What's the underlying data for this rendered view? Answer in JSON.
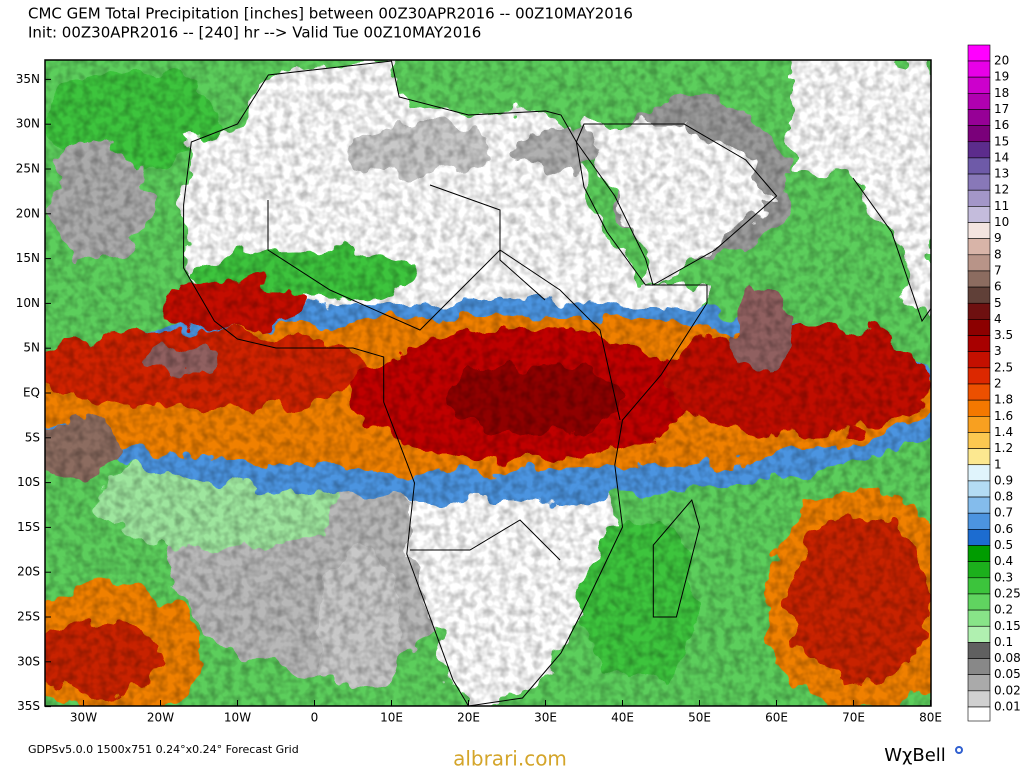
{
  "header": {
    "title": "CMC GEM Total Precipitation [inches] between 00Z30APR2016 -- 00Z10MAY2016",
    "subtitle": "Init: 00Z30APR2016 -- [240] hr --> Valid Tue 00Z10MAY2016"
  },
  "map": {
    "lat_labels": [
      "35N",
      "30N",
      "25N",
      "20N",
      "15N",
      "10N",
      "5N",
      "EQ",
      "5S",
      "10S",
      "15S",
      "20S",
      "25S",
      "30S",
      "35S"
    ],
    "lon_labels": [
      "30W",
      "20W",
      "10W",
      "0",
      "10E",
      "20E",
      "30E",
      "40E",
      "50E",
      "60E",
      "70E",
      "80E"
    ]
  },
  "legend": {
    "labels": [
      20,
      19,
      18,
      17,
      16,
      15,
      14,
      13,
      12,
      11,
      10,
      9,
      8,
      7,
      6,
      5,
      4,
      3.5,
      3,
      2.5,
      2,
      1.8,
      1.6,
      1.4,
      1.2,
      1,
      0.9,
      0.8,
      0.7,
      0.6,
      0.5,
      0.4,
      0.3,
      0.25,
      0.2,
      0.15,
      0.1,
      0.08,
      0.05,
      0.02,
      0.01
    ],
    "colors": [
      "#ff00ff",
      "#e800e8",
      "#cc00cc",
      "#b000b0",
      "#960096",
      "#7a007a",
      "#5c2c8c",
      "#6e5aa8",
      "#8878b8",
      "#a396c8",
      "#c4bcdc",
      "#f4e4e0",
      "#d8b4a8",
      "#b89488",
      "#8c6c60",
      "#604038",
      "#6e1010",
      "#8c0000",
      "#a80000",
      "#c41000",
      "#dc2800",
      "#ec5000",
      "#f47800",
      "#f8a020",
      "#fcc850",
      "#fce890",
      "#e0f4fc",
      "#b4dcf4",
      "#84bcec",
      "#4c94e0",
      "#1c6cd0",
      "#009c00",
      "#1cb01c",
      "#3cc43c",
      "#60d460",
      "#88e488",
      "#b0f0b0",
      "#606060",
      "#888888",
      "#aaaaaa",
      "#d0d0d0",
      "#ffffff"
    ]
  },
  "footer": {
    "grid_info": "GDPSv5.0.0  1500x751  0.24°x0.24° Forecast Grid",
    "watermark": "albrari.com",
    "brand": "WχBell"
  }
}
